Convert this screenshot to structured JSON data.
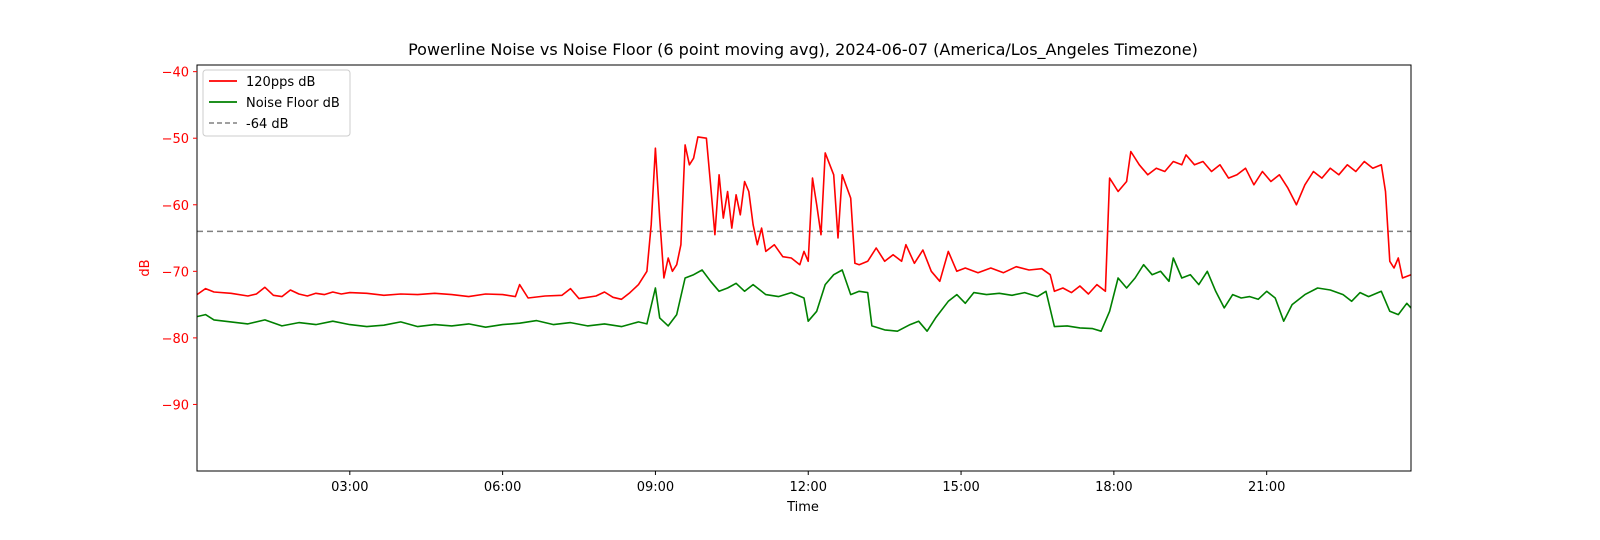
{
  "chart_data": {
    "type": "line",
    "title": "Powerline Noise vs Noise Floor (6 point moving avg), 2024-06-07 (America/Los_Angeles Timezone)",
    "xlabel": "Time",
    "ylabel": "dB",
    "ylim": [
      -100,
      -39
    ],
    "xlim": [
      "00:00",
      "23:50"
    ],
    "x_ticks": [
      "03:00",
      "06:00",
      "09:00",
      "12:00",
      "15:00",
      "18:00",
      "21:00"
    ],
    "y_ticks": [
      -40,
      -50,
      -60,
      -70,
      -80,
      -90
    ],
    "grid": false,
    "legend_position": "top-left",
    "colors": {
      "axis_y": "#ff0000",
      "series_120pps": "#ff0000",
      "series_floor": "#008000",
      "reference": "#808080"
    },
    "reference_line": {
      "name": "-64 dB",
      "y": -64,
      "style": "dashed"
    },
    "series": [
      {
        "name": "120pps dB",
        "color": "#ff0000",
        "points": [
          [
            "00:00",
            -73.5
          ],
          [
            "00:10",
            -72.6
          ],
          [
            "00:20",
            -73.1
          ],
          [
            "00:40",
            -73.3
          ],
          [
            "01:00",
            -73.7
          ],
          [
            "01:10",
            -73.4
          ],
          [
            "01:20",
            -72.4
          ],
          [
            "01:30",
            -73.6
          ],
          [
            "01:40",
            -73.8
          ],
          [
            "01:50",
            -72.8
          ],
          [
            "02:00",
            -73.4
          ],
          [
            "02:10",
            -73.7
          ],
          [
            "02:20",
            -73.3
          ],
          [
            "02:30",
            -73.5
          ],
          [
            "02:40",
            -73.1
          ],
          [
            "02:50",
            -73.4
          ],
          [
            "03:00",
            -73.2
          ],
          [
            "03:20",
            -73.3
          ],
          [
            "03:40",
            -73.6
          ],
          [
            "04:00",
            -73.4
          ],
          [
            "04:20",
            -73.5
          ],
          [
            "04:40",
            -73.3
          ],
          [
            "05:00",
            -73.5
          ],
          [
            "05:20",
            -73.8
          ],
          [
            "05:40",
            -73.4
          ],
          [
            "06:00",
            -73.5
          ],
          [
            "06:15",
            -73.8
          ],
          [
            "06:20",
            -72.0
          ],
          [
            "06:30",
            -74.0
          ],
          [
            "06:50",
            -73.7
          ],
          [
            "07:10",
            -73.6
          ],
          [
            "07:20",
            -72.6
          ],
          [
            "07:30",
            -74.1
          ],
          [
            "07:50",
            -73.7
          ],
          [
            "08:00",
            -73.1
          ],
          [
            "08:10",
            -73.9
          ],
          [
            "08:20",
            -74.2
          ],
          [
            "08:30",
            -73.2
          ],
          [
            "08:40",
            -72.0
          ],
          [
            "08:50",
            -70.0
          ],
          [
            "08:55",
            -63.0
          ],
          [
            "09:00",
            -51.5
          ],
          [
            "09:05",
            -62.0
          ],
          [
            "09:10",
            -71.0
          ],
          [
            "09:15",
            -68.0
          ],
          [
            "09:20",
            -70.0
          ],
          [
            "09:25",
            -69.0
          ],
          [
            "09:30",
            -66.0
          ],
          [
            "09:35",
            -51.0
          ],
          [
            "09:40",
            -54.0
          ],
          [
            "09:45",
            -53.0
          ],
          [
            "09:50",
            -49.8
          ],
          [
            "10:00",
            -50.0
          ],
          [
            "10:05",
            -57.0
          ],
          [
            "10:10",
            -64.5
          ],
          [
            "10:15",
            -55.5
          ],
          [
            "10:20",
            -62.0
          ],
          [
            "10:25",
            -58.0
          ],
          [
            "10:30",
            -63.5
          ],
          [
            "10:35",
            -58.5
          ],
          [
            "10:40",
            -61.5
          ],
          [
            "10:45",
            -56.5
          ],
          [
            "10:50",
            -58.0
          ],
          [
            "10:55",
            -63.0
          ],
          [
            "11:00",
            -66.0
          ],
          [
            "11:05",
            -63.5
          ],
          [
            "11:10",
            -67.0
          ],
          [
            "11:20",
            -66.0
          ],
          [
            "11:30",
            -67.8
          ],
          [
            "11:40",
            -68.0
          ],
          [
            "11:50",
            -69.0
          ],
          [
            "11:55",
            -67.0
          ],
          [
            "12:00",
            -68.5
          ],
          [
            "12:05",
            -56.0
          ],
          [
            "12:10",
            -60.0
          ],
          [
            "12:15",
            -64.5
          ],
          [
            "12:20",
            -52.2
          ],
          [
            "12:30",
            -55.5
          ],
          [
            "12:35",
            -65.0
          ],
          [
            "12:40",
            -55.5
          ],
          [
            "12:50",
            -59.0
          ],
          [
            "12:55",
            -68.8
          ],
          [
            "13:00",
            -69.0
          ],
          [
            "13:10",
            -68.5
          ],
          [
            "13:20",
            -66.5
          ],
          [
            "13:30",
            -68.5
          ],
          [
            "13:40",
            -67.5
          ],
          [
            "13:50",
            -68.5
          ],
          [
            "13:55",
            -66.0
          ],
          [
            "14:05",
            -68.8
          ],
          [
            "14:15",
            -66.8
          ],
          [
            "14:25",
            -70.0
          ],
          [
            "14:35",
            -71.5
          ],
          [
            "14:45",
            -67.0
          ],
          [
            "14:55",
            -70.0
          ],
          [
            "15:05",
            -69.5
          ],
          [
            "15:20",
            -70.2
          ],
          [
            "15:35",
            -69.5
          ],
          [
            "15:50",
            -70.2
          ],
          [
            "16:05",
            -69.3
          ],
          [
            "16:20",
            -69.8
          ],
          [
            "16:35",
            -69.6
          ],
          [
            "16:45",
            -70.5
          ],
          [
            "16:50",
            -73.0
          ],
          [
            "17:00",
            -72.5
          ],
          [
            "17:10",
            -73.2
          ],
          [
            "17:20",
            -72.2
          ],
          [
            "17:30",
            -73.4
          ],
          [
            "17:40",
            -72.0
          ],
          [
            "17:50",
            -73.0
          ],
          [
            "17:55",
            -56.0
          ],
          [
            "18:05",
            -58.0
          ],
          [
            "18:15",
            -56.5
          ],
          [
            "18:20",
            -52.0
          ],
          [
            "18:30",
            -54.0
          ],
          [
            "18:40",
            -55.5
          ],
          [
            "18:50",
            -54.5
          ],
          [
            "19:00",
            -55.0
          ],
          [
            "19:10",
            -53.5
          ],
          [
            "19:20",
            -54.0
          ],
          [
            "19:25",
            -52.5
          ],
          [
            "19:35",
            -54.0
          ],
          [
            "19:45",
            -53.5
          ],
          [
            "19:55",
            -55.0
          ],
          [
            "20:05",
            -54.0
          ],
          [
            "20:15",
            -56.0
          ],
          [
            "20:25",
            -55.5
          ],
          [
            "20:35",
            -54.5
          ],
          [
            "20:45",
            -57.0
          ],
          [
            "20:55",
            -55.0
          ],
          [
            "21:05",
            -56.5
          ],
          [
            "21:15",
            -55.5
          ],
          [
            "21:25",
            -57.5
          ],
          [
            "21:35",
            -60.0
          ],
          [
            "21:45",
            -57.0
          ],
          [
            "21:55",
            -55.0
          ],
          [
            "22:05",
            -56.0
          ],
          [
            "22:15",
            -54.5
          ],
          [
            "22:25",
            -55.5
          ],
          [
            "22:35",
            -54.0
          ],
          [
            "22:45",
            -55.0
          ],
          [
            "22:55",
            -53.5
          ],
          [
            "23:05",
            -54.5
          ],
          [
            "23:15",
            -54.0
          ],
          [
            "23:20",
            -58.0
          ],
          [
            "23:25",
            -68.5
          ],
          [
            "23:30",
            -69.5
          ],
          [
            "23:35",
            -68.0
          ],
          [
            "23:40",
            -71.0
          ],
          [
            "23:50",
            -70.5
          ]
        ]
      },
      {
        "name": "Noise Floor dB",
        "color": "#008000",
        "points": [
          [
            "00:00",
            -76.8
          ],
          [
            "00:10",
            -76.5
          ],
          [
            "00:20",
            -77.3
          ],
          [
            "00:40",
            -77.6
          ],
          [
            "01:00",
            -77.9
          ],
          [
            "01:20",
            -77.3
          ],
          [
            "01:40",
            -78.2
          ],
          [
            "02:00",
            -77.7
          ],
          [
            "02:20",
            -78.0
          ],
          [
            "02:40",
            -77.5
          ],
          [
            "03:00",
            -78.0
          ],
          [
            "03:20",
            -78.3
          ],
          [
            "03:40",
            -78.1
          ],
          [
            "04:00",
            -77.6
          ],
          [
            "04:20",
            -78.3
          ],
          [
            "04:40",
            -78.0
          ],
          [
            "05:00",
            -78.2
          ],
          [
            "05:20",
            -77.9
          ],
          [
            "05:40",
            -78.4
          ],
          [
            "06:00",
            -78.0
          ],
          [
            "06:20",
            -77.8
          ],
          [
            "06:40",
            -77.4
          ],
          [
            "07:00",
            -78.0
          ],
          [
            "07:20",
            -77.7
          ],
          [
            "07:40",
            -78.2
          ],
          [
            "08:00",
            -77.9
          ],
          [
            "08:20",
            -78.3
          ],
          [
            "08:40",
            -77.6
          ],
          [
            "08:50",
            -77.9
          ],
          [
            "09:00",
            -72.5
          ],
          [
            "09:05",
            -77.0
          ],
          [
            "09:15",
            -78.2
          ],
          [
            "09:25",
            -76.5
          ],
          [
            "09:35",
            -71.0
          ],
          [
            "09:45",
            -70.5
          ],
          [
            "09:55",
            -69.8
          ],
          [
            "10:05",
            -71.5
          ],
          [
            "10:15",
            -73.0
          ],
          [
            "10:25",
            -72.5
          ],
          [
            "10:35",
            -71.8
          ],
          [
            "10:45",
            -73.0
          ],
          [
            "10:55",
            -72.0
          ],
          [
            "11:10",
            -73.5
          ],
          [
            "11:25",
            -73.8
          ],
          [
            "11:40",
            -73.2
          ],
          [
            "11:55",
            -74.0
          ],
          [
            "12:00",
            -77.5
          ],
          [
            "12:10",
            -76.0
          ],
          [
            "12:20",
            -72.0
          ],
          [
            "12:30",
            -70.5
          ],
          [
            "12:40",
            -69.8
          ],
          [
            "12:50",
            -73.5
          ],
          [
            "13:00",
            -73.0
          ],
          [
            "13:10",
            -73.2
          ],
          [
            "13:15",
            -78.2
          ],
          [
            "13:30",
            -78.8
          ],
          [
            "13:45",
            -79.0
          ],
          [
            "14:00",
            -78.0
          ],
          [
            "14:10",
            -77.5
          ],
          [
            "14:20",
            -79.0
          ],
          [
            "14:30",
            -77.0
          ],
          [
            "14:45",
            -74.5
          ],
          [
            "14:55",
            -73.5
          ],
          [
            "15:05",
            -74.8
          ],
          [
            "15:15",
            -73.2
          ],
          [
            "15:30",
            -73.5
          ],
          [
            "15:45",
            -73.3
          ],
          [
            "16:00",
            -73.6
          ],
          [
            "16:15",
            -73.2
          ],
          [
            "16:30",
            -73.8
          ],
          [
            "16:40",
            -73.0
          ],
          [
            "16:50",
            -78.3
          ],
          [
            "17:05",
            -78.2
          ],
          [
            "17:20",
            -78.5
          ],
          [
            "17:35",
            -78.6
          ],
          [
            "17:45",
            -79.0
          ],
          [
            "17:55",
            -76.0
          ],
          [
            "18:05",
            -71.0
          ],
          [
            "18:15",
            -72.5
          ],
          [
            "18:25",
            -71.0
          ],
          [
            "18:35",
            -69.0
          ],
          [
            "18:45",
            -70.5
          ],
          [
            "18:55",
            -70.0
          ],
          [
            "19:05",
            -71.5
          ],
          [
            "19:10",
            -68.0
          ],
          [
            "19:20",
            -71.0
          ],
          [
            "19:30",
            -70.5
          ],
          [
            "19:40",
            -72.0
          ],
          [
            "19:50",
            -70.0
          ],
          [
            "20:00",
            -73.0
          ],
          [
            "20:10",
            -75.5
          ],
          [
            "20:20",
            -73.5
          ],
          [
            "20:30",
            -74.0
          ],
          [
            "20:40",
            -73.8
          ],
          [
            "20:50",
            -74.2
          ],
          [
            "21:00",
            -73.0
          ],
          [
            "21:10",
            -74.0
          ],
          [
            "21:20",
            -77.5
          ],
          [
            "21:30",
            -75.0
          ],
          [
            "21:45",
            -73.5
          ],
          [
            "22:00",
            -72.5
          ],
          [
            "22:15",
            -72.8
          ],
          [
            "22:30",
            -73.5
          ],
          [
            "22:40",
            -74.5
          ],
          [
            "22:50",
            -73.2
          ],
          [
            "23:00",
            -73.8
          ],
          [
            "23:15",
            -73.0
          ],
          [
            "23:25",
            -76.0
          ],
          [
            "23:35",
            -76.5
          ],
          [
            "23:45",
            -74.8
          ],
          [
            "23:50",
            -75.5
          ]
        ]
      }
    ]
  }
}
